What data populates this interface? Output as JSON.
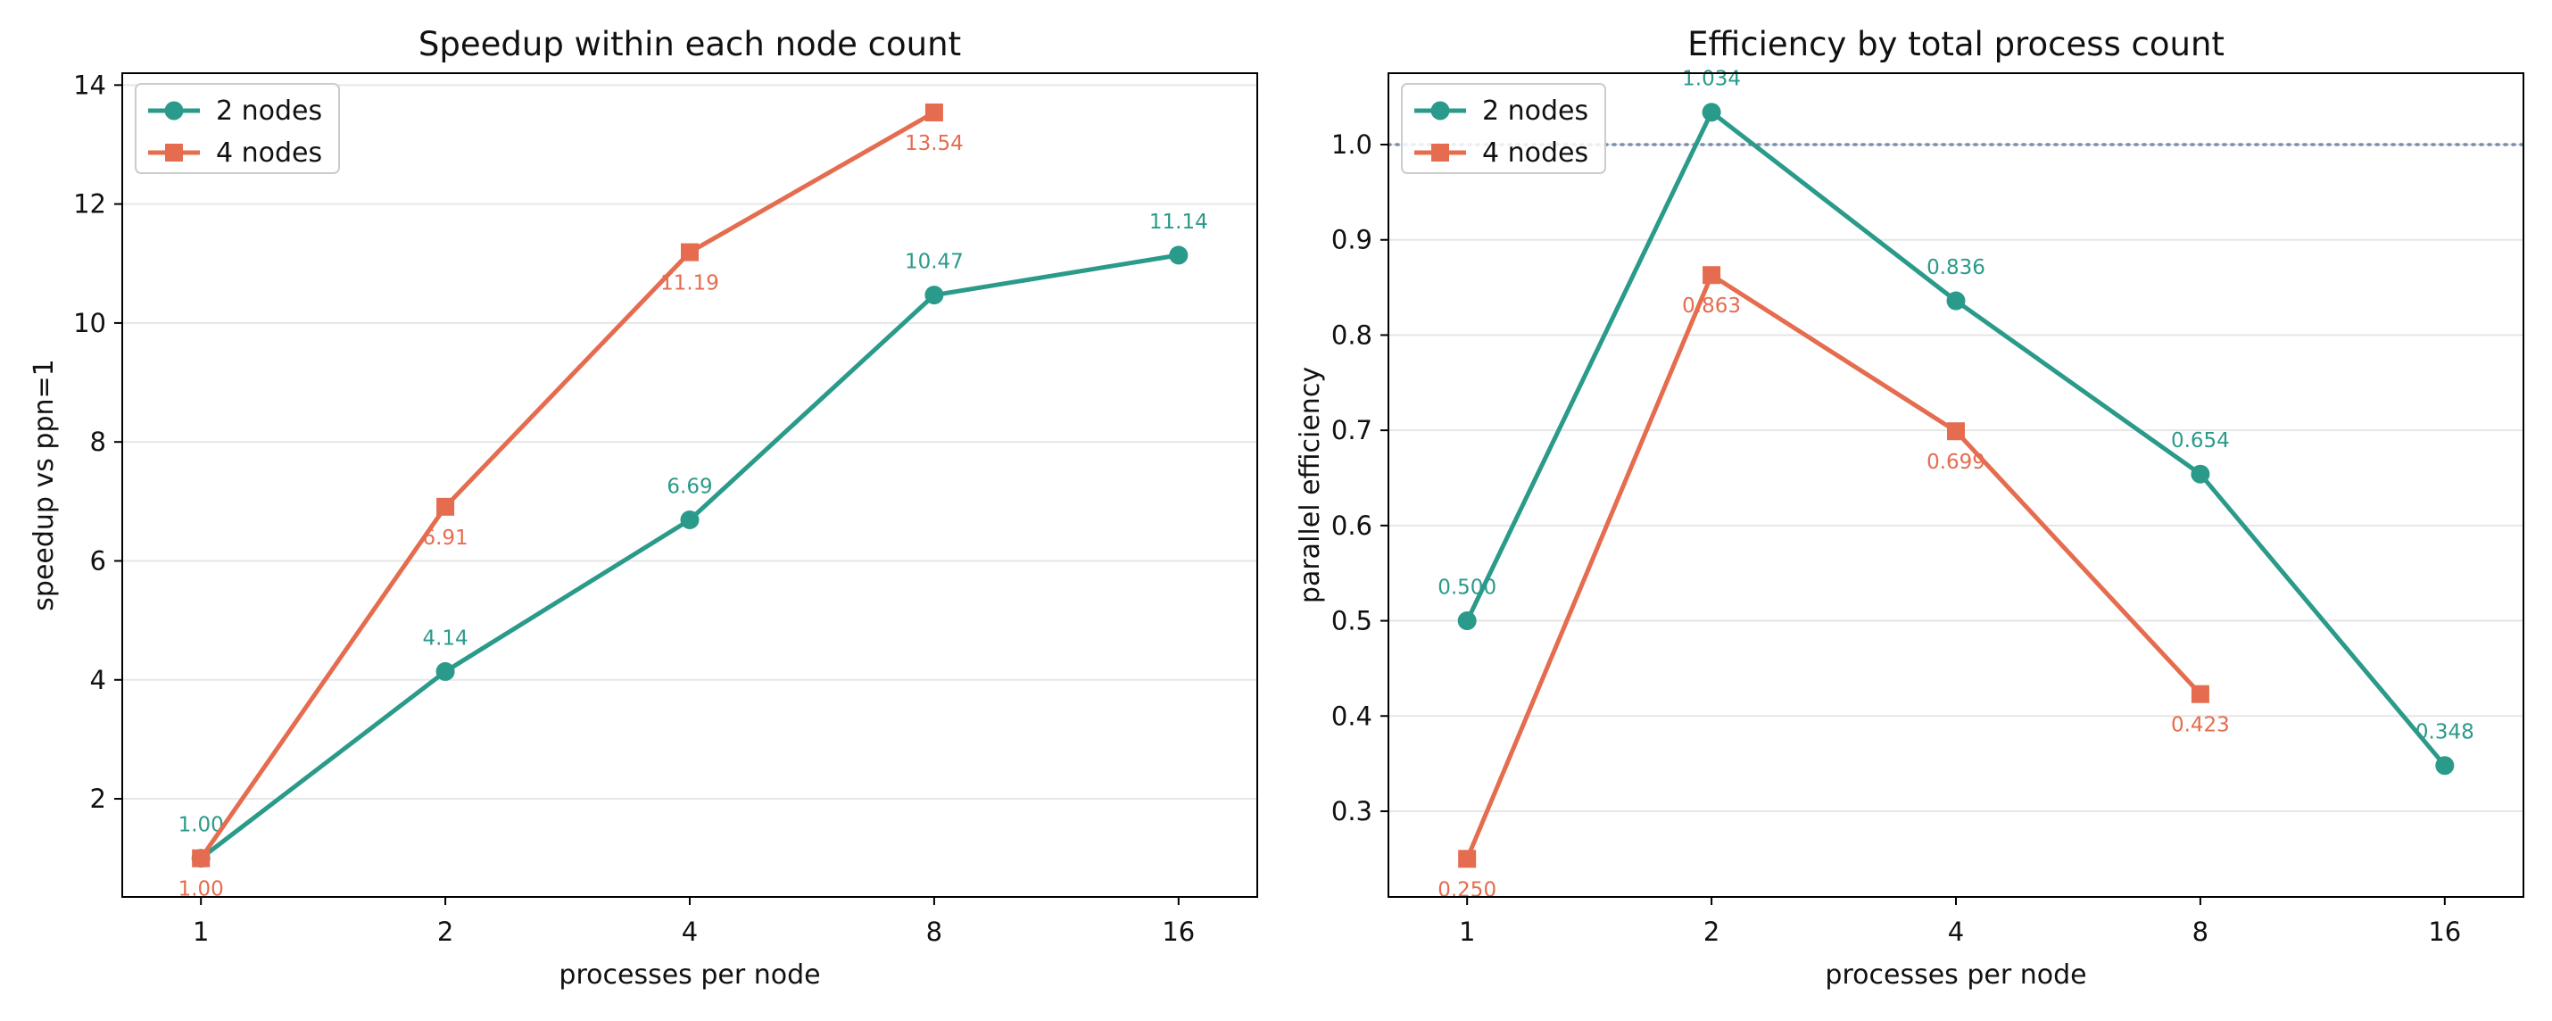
{
  "colors": {
    "series1": "#2a9a8a",
    "series2": "#e56c4e",
    "reference_line": "#7a8fad",
    "grid": "#e6e6e6",
    "axes": "#000000"
  },
  "chart_data": [
    {
      "type": "line",
      "title": "Speedup within each node count",
      "xlabel": "processes per node",
      "ylabel": "speedup vs ppn=1",
      "x_scale": "log2",
      "x_ticks": [
        1,
        2,
        4,
        8,
        16
      ],
      "x_tick_labels": [
        "1",
        "2",
        "4",
        "8",
        "16"
      ],
      "xlim": [
        0.8,
        20
      ],
      "ylim": [
        0.35,
        14.2
      ],
      "y_ticks": [
        2,
        4,
        6,
        8,
        10,
        12,
        14
      ],
      "y_tick_labels": [
        "2",
        "4",
        "6",
        "8",
        "10",
        "12",
        "14"
      ],
      "grid": "horizontal",
      "legend_position": "top-left",
      "series": [
        {
          "name": "2 nodes",
          "marker": "circle",
          "x": [
            1,
            2,
            4,
            8,
            16
          ],
          "y": [
            1.0,
            4.14,
            6.69,
            10.47,
            11.14
          ],
          "labels": [
            "1.00",
            "4.14",
            "6.69",
            "10.47",
            "11.14"
          ],
          "label_side": "above"
        },
        {
          "name": "4 nodes",
          "marker": "square",
          "x": [
            1,
            2,
            4,
            8
          ],
          "y": [
            1.0,
            6.91,
            11.19,
            13.54
          ],
          "labels": [
            "1.00",
            "6.91",
            "11.19",
            "13.54"
          ],
          "label_side": "below"
        }
      ]
    },
    {
      "type": "line",
      "title": "Efficiency by total process count",
      "xlabel": "processes per node",
      "ylabel": "parallel efficiency",
      "x_scale": "log2",
      "x_ticks": [
        1,
        2,
        4,
        8,
        16
      ],
      "x_tick_labels": [
        "1",
        "2",
        "4",
        "8",
        "16"
      ],
      "xlim": [
        0.8,
        20
      ],
      "ylim": [
        0.21,
        1.075
      ],
      "y_ticks": [
        0.3,
        0.4,
        0.5,
        0.6,
        0.7,
        0.8,
        0.9,
        1.0
      ],
      "y_tick_labels": [
        "0.3",
        "0.4",
        "0.5",
        "0.6",
        "0.7",
        "0.8",
        "0.9",
        "1.0"
      ],
      "grid": "horizontal",
      "legend_position": "top-left",
      "reference_line": {
        "y": 1.0,
        "style": "dotted"
      },
      "series": [
        {
          "name": "2 nodes",
          "marker": "circle",
          "x": [
            1,
            2,
            4,
            8,
            16
          ],
          "y": [
            0.5,
            1.034,
            0.836,
            0.654,
            0.348
          ],
          "labels": [
            "0.500",
            "1.034",
            "0.836",
            "0.654",
            "0.348"
          ],
          "label_side": "above"
        },
        {
          "name": "4 nodes",
          "marker": "square",
          "x": [
            1,
            2,
            4,
            8
          ],
          "y": [
            0.25,
            0.863,
            0.699,
            0.423
          ],
          "labels": [
            "0.250",
            "0.863",
            "0.699",
            "0.423"
          ],
          "label_side": "below"
        }
      ]
    }
  ]
}
